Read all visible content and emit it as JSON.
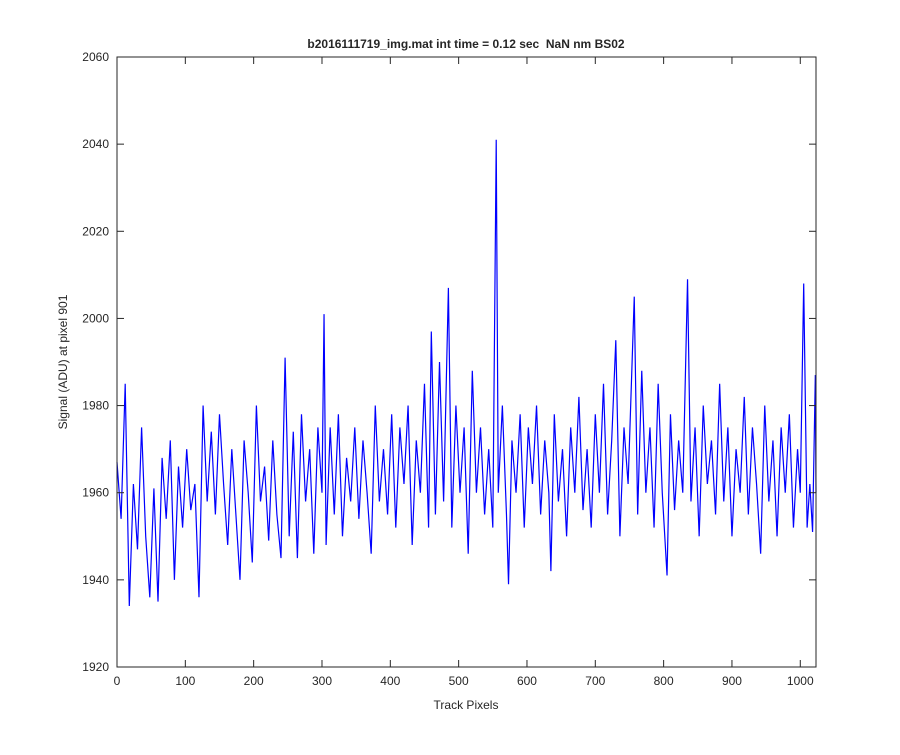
{
  "chart_data": {
    "type": "line",
    "title": "b2016111719_img.mat int time = 0.12 sec  NaN nm BS02",
    "xlabel": "Track Pixels",
    "ylabel": "Signal (ADU) at pixel 901",
    "color": "#0000ff",
    "xlim": [
      0,
      1023
    ],
    "ylim": [
      1920,
      2060
    ],
    "xticks": [
      0,
      100,
      200,
      300,
      400,
      500,
      600,
      700,
      800,
      900,
      1000
    ],
    "yticks": [
      1920,
      1940,
      1960,
      1980,
      2000,
      2020,
      2040,
      2060
    ],
    "x": [
      0,
      6,
      12,
      18,
      24,
      30,
      36,
      42,
      48,
      54,
      60,
      66,
      72,
      78,
      84,
      90,
      96,
      102,
      108,
      114,
      120,
      126,
      132,
      138,
      144,
      150,
      156,
      162,
      168,
      174,
      180,
      186,
      192,
      198,
      204,
      210,
      216,
      222,
      228,
      234,
      240,
      246,
      252,
      258,
      264,
      270,
      276,
      282,
      288,
      294,
      300,
      303,
      306,
      312,
      318,
      324,
      330,
      336,
      342,
      348,
      354,
      360,
      366,
      372,
      378,
      384,
      390,
      396,
      402,
      408,
      414,
      420,
      426,
      432,
      438,
      444,
      450,
      456,
      460,
      466,
      472,
      478,
      485,
      490,
      496,
      502,
      508,
      514,
      520,
      526,
      532,
      538,
      544,
      550,
      555,
      558,
      564,
      570,
      573,
      578,
      584,
      590,
      596,
      602,
      608,
      614,
      620,
      626,
      632,
      635,
      640,
      646,
      652,
      658,
      664,
      670,
      676,
      682,
      688,
      694,
      700,
      706,
      712,
      718,
      724,
      730,
      736,
      742,
      748,
      757,
      762,
      768,
      774,
      780,
      786,
      792,
      798,
      805,
      810,
      816,
      822,
      828,
      835,
      840,
      846,
      852,
      858,
      864,
      870,
      876,
      882,
      888,
      894,
      900,
      906,
      912,
      918,
      924,
      930,
      936,
      942,
      948,
      954,
      960,
      966,
      972,
      978,
      984,
      990,
      996,
      1000,
      1005,
      1010,
      1014,
      1018,
      1022,
      1023
    ],
    "values": [
      1967,
      1954,
      1985,
      1934,
      1962,
      1947,
      1975,
      1950,
      1936,
      1961,
      1935,
      1968,
      1954,
      1972,
      1940,
      1966,
      1952,
      1970,
      1956,
      1962,
      1936,
      1980,
      1958,
      1974,
      1955,
      1978,
      1962,
      1948,
      1970,
      1955,
      1940,
      1972,
      1960,
      1944,
      1980,
      1958,
      1966,
      1949,
      1972,
      1955,
      1945,
      1991,
      1950,
      1974,
      1945,
      1978,
      1958,
      1970,
      1946,
      1975,
      1960,
      2001,
      1948,
      1975,
      1955,
      1978,
      1950,
      1968,
      1958,
      1975,
      1954,
      1972,
      1960,
      1946,
      1980,
      1958,
      1970,
      1955,
      1978,
      1952,
      1975,
      1962,
      1980,
      1948,
      1972,
      1960,
      1985,
      1952,
      1997,
      1955,
      1990,
      1958,
      2007,
      1952,
      1980,
      1960,
      1975,
      1946,
      1988,
      1960,
      1975,
      1955,
      1970,
      1952,
      2041,
      1960,
      1980,
      1955,
      1939,
      1972,
      1960,
      1978,
      1952,
      1975,
      1962,
      1980,
      1955,
      1972,
      1960,
      1942,
      1978,
      1958,
      1970,
      1950,
      1975,
      1960,
      1982,
      1956,
      1970,
      1952,
      1978,
      1960,
      1985,
      1955,
      1972,
      1995,
      1950,
      1975,
      1962,
      2005,
      1955,
      1988,
      1960,
      1975,
      1952,
      1985,
      1960,
      1941,
      1978,
      1956,
      1972,
      1960,
      2009,
      1958,
      1975,
      1950,
      1980,
      1962,
      1972,
      1955,
      1985,
      1958,
      1975,
      1950,
      1970,
      1960,
      1982,
      1955,
      1975,
      1962,
      1946,
      1980,
      1958,
      1972,
      1950,
      1975,
      1960,
      1978,
      1952,
      1970,
      1960,
      2008,
      1952,
      1962,
      1951,
      1987,
      1960
    ]
  }
}
